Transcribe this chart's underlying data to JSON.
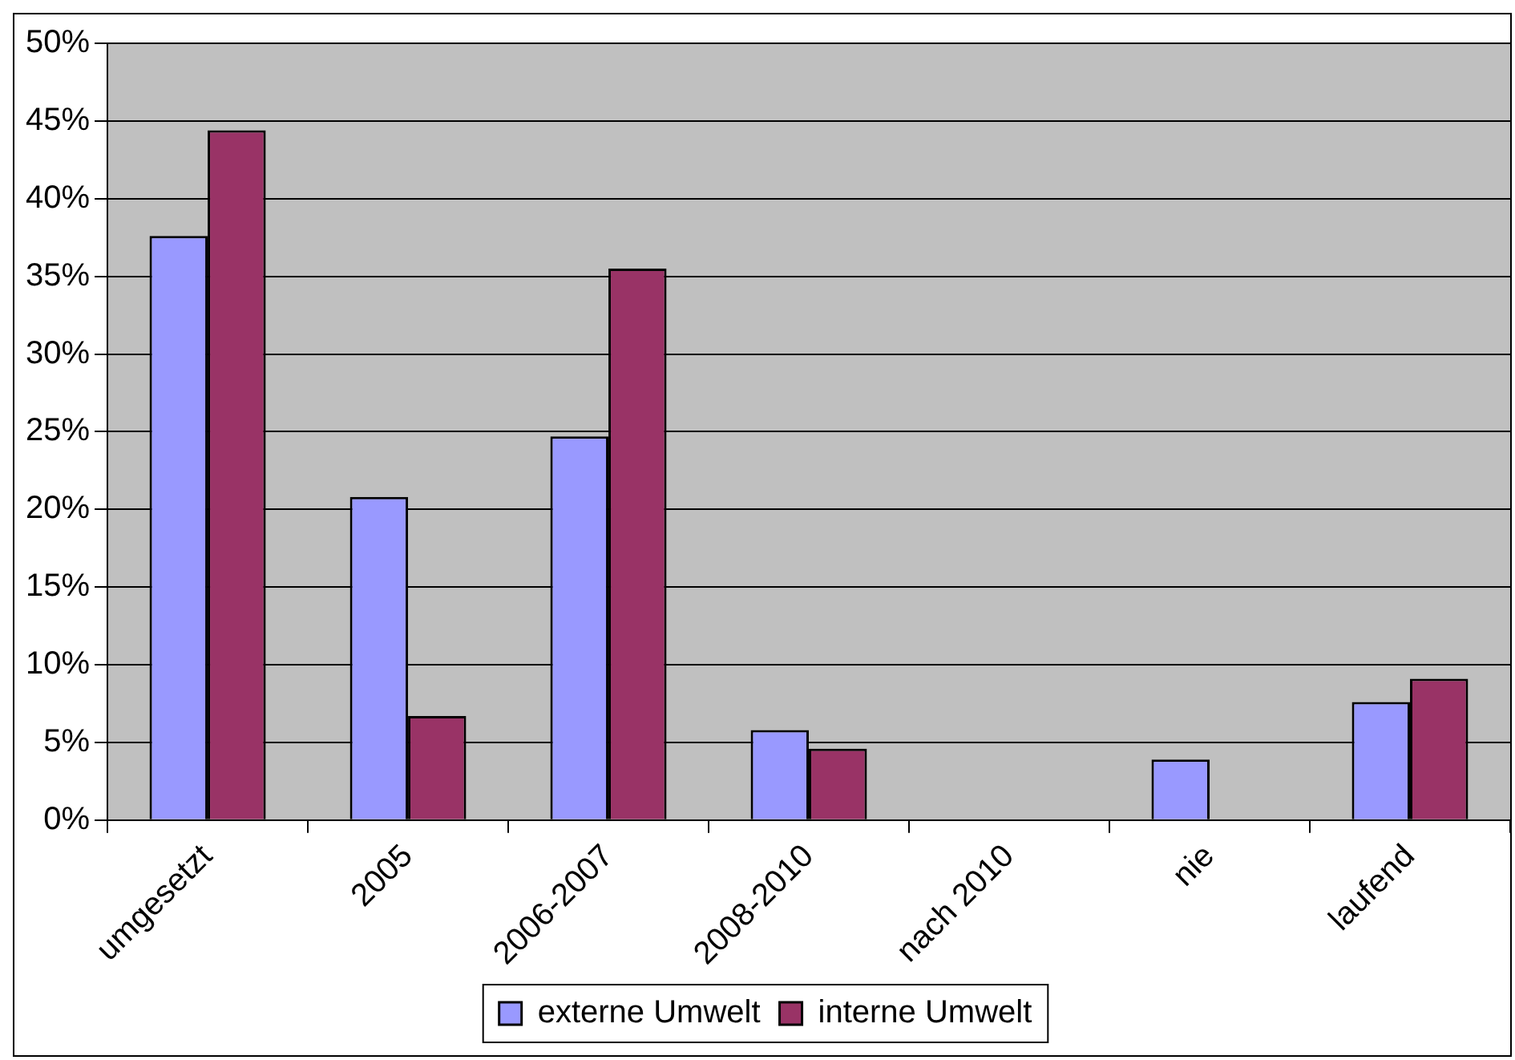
{
  "chart_data": {
    "type": "bar",
    "categories": [
      "umgesetzt",
      "2005",
      "2006-2007",
      "2008-2010",
      "nach 2010",
      "nie",
      "laufend"
    ],
    "series": [
      {
        "name": "externe Umwelt",
        "color": "#9999ff",
        "values": [
          37.6,
          20.8,
          24.7,
          5.8,
          0,
          3.9,
          7.6
        ]
      },
      {
        "name": "interne Umwelt",
        "color": "#993366",
        "values": [
          44.4,
          6.7,
          35.5,
          4.6,
          0,
          0,
          9.1
        ]
      }
    ],
    "ylim": [
      0,
      50
    ],
    "yticks": [
      {
        "value": 0,
        "label": "0%"
      },
      {
        "value": 5,
        "label": "5%"
      },
      {
        "value": 10,
        "label": "10%"
      },
      {
        "value": 15,
        "label": "15%"
      },
      {
        "value": 20,
        "label": "20%"
      },
      {
        "value": 25,
        "label": "25%"
      },
      {
        "value": 30,
        "label": "30%"
      },
      {
        "value": 35,
        "label": "35%"
      },
      {
        "value": 40,
        "label": "40%"
      },
      {
        "value": 45,
        "label": "45%"
      },
      {
        "value": 50,
        "label": "50%"
      }
    ],
    "grid": "y",
    "legend": "bottom"
  }
}
